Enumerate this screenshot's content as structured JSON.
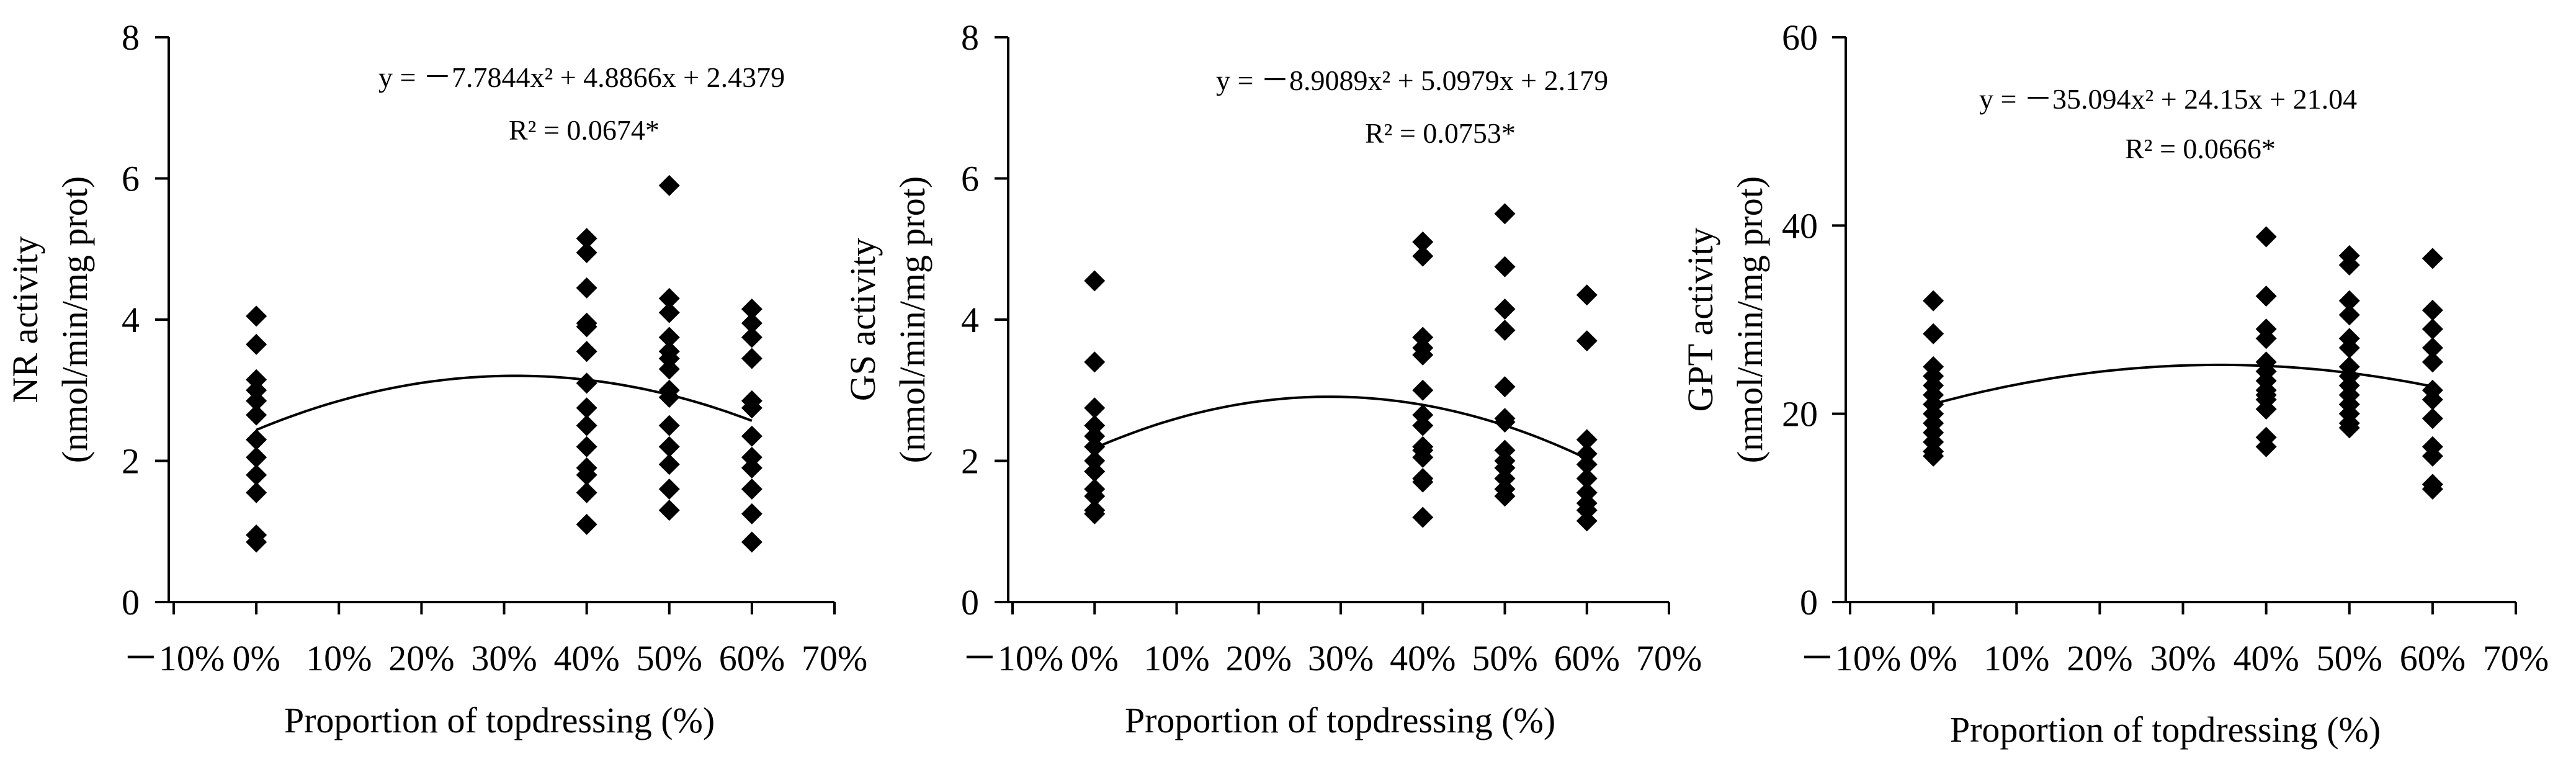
{
  "chart_data": [
    {
      "type": "scatter",
      "ylabel_line1": "NR activity",
      "ylabel_line2": "(nmol/min/mg prot)",
      "xlabel": "Proportion of topdressing (%)",
      "xlim": [
        -0.1,
        0.7
      ],
      "ylim": [
        0,
        8
      ],
      "x_tick_values": [
        -0.1,
        0.0,
        0.1,
        0.2,
        0.3,
        0.4,
        0.5,
        0.6,
        0.7
      ],
      "x_tick_labels": [
        "－10%",
        "0%",
        "10%",
        "20%",
        "30%",
        "40%",
        "50%",
        "60%",
        "70%"
      ],
      "y_tick_values": [
        0,
        2,
        4,
        6,
        8
      ],
      "y_tick_labels": [
        "0",
        "2",
        "4",
        "6",
        "8"
      ],
      "equation": "y =  －7.7844x² + 4.8866x + 2.4379",
      "r2": "R² = 0.0674*",
      "fit": {
        "a": -7.7844,
        "b": 4.8866,
        "c": 2.4379,
        "x_range": [
          0.0,
          0.6
        ]
      },
      "points": [
        {
          "x": 0.0,
          "y": [
            4.05,
            3.65,
            3.15,
            3.0,
            2.85,
            2.65,
            2.3,
            2.05,
            1.8,
            1.55,
            0.95,
            0.85
          ]
        },
        {
          "x": 0.4,
          "y": [
            5.15,
            4.95,
            4.45,
            3.95,
            3.9,
            3.55,
            3.1,
            2.75,
            2.5,
            2.2,
            1.9,
            1.8,
            1.55,
            1.1
          ]
        },
        {
          "x": 0.5,
          "y": [
            5.9,
            4.3,
            4.1,
            3.75,
            3.55,
            3.45,
            3.3,
            3.0,
            2.9,
            2.5,
            2.2,
            1.95,
            1.6,
            1.3
          ]
        },
        {
          "x": 0.6,
          "y": [
            4.15,
            3.95,
            3.75,
            3.45,
            2.85,
            2.75,
            2.35,
            2.05,
            1.9,
            1.6,
            1.25,
            0.85
          ]
        }
      ]
    },
    {
      "type": "scatter",
      "ylabel_line1": "GS activity",
      "ylabel_line2": "(nmol/min/mg prot)",
      "xlabel": "Proportion of topdressing (%)",
      "xlim": [
        -0.1,
        0.7
      ],
      "ylim": [
        0,
        8
      ],
      "x_tick_values": [
        -0.1,
        0.0,
        0.1,
        0.2,
        0.3,
        0.4,
        0.5,
        0.6,
        0.7
      ],
      "x_tick_labels": [
        "－10%",
        "0%",
        "10%",
        "20%",
        "30%",
        "40%",
        "50%",
        "60%",
        "70%"
      ],
      "y_tick_values": [
        0,
        2,
        4,
        6,
        8
      ],
      "y_tick_labels": [
        "0",
        "2",
        "4",
        "6",
        "8"
      ],
      "equation": "y =  －8.9089x² + 5.0979x + 2.179",
      "r2": "R² = 0.0753*",
      "fit": {
        "a": -8.9089,
        "b": 5.0979,
        "c": 2.179,
        "x_range": [
          0.0,
          0.6
        ]
      },
      "points": [
        {
          "x": 0.0,
          "y": [
            4.55,
            3.4,
            2.75,
            2.5,
            2.35,
            2.2,
            2.0,
            1.85,
            1.6,
            1.5,
            1.3,
            1.25
          ]
        },
        {
          "x": 0.4,
          "y": [
            5.1,
            4.9,
            3.75,
            3.6,
            3.5,
            3.0,
            2.65,
            2.5,
            2.2,
            2.15,
            2.05,
            1.75,
            1.7,
            1.2
          ]
        },
        {
          "x": 0.5,
          "y": [
            5.5,
            4.75,
            4.15,
            3.85,
            3.05,
            2.6,
            2.55,
            2.15,
            2.0,
            1.9,
            1.75,
            1.6,
            1.5
          ]
        },
        {
          "x": 0.6,
          "y": [
            4.35,
            3.7,
            2.3,
            2.1,
            1.95,
            1.75,
            1.55,
            1.4,
            1.3,
            1.15
          ]
        }
      ]
    },
    {
      "type": "scatter",
      "ylabel_line1": "GPT activity",
      "ylabel_line2": "(nmol/min/mg prot)",
      "xlabel": "Proportion of topdressing (%)",
      "xlim": [
        -0.1,
        0.7
      ],
      "ylim": [
        0,
        60
      ],
      "x_tick_values": [
        -0.1,
        0.0,
        0.1,
        0.2,
        0.3,
        0.4,
        0.5,
        0.6,
        0.7
      ],
      "x_tick_labels": [
        "－10%",
        "0%",
        "10%",
        "20%",
        "30%",
        "40%",
        "50%",
        "60%",
        "70%"
      ],
      "y_tick_values": [
        0,
        20,
        40,
        60
      ],
      "y_tick_labels": [
        "0",
        "20",
        "40",
        "60"
      ],
      "equation": "y = －35.094x² + 24.15x + 21.04",
      "r2": "R² = 0.0666*",
      "fit": {
        "a": -35.094,
        "b": 24.15,
        "c": 21.04,
        "x_range": [
          0.0,
          0.6
        ]
      },
      "points": [
        {
          "x": 0.0,
          "y": [
            32.0,
            28.5,
            25.0,
            24.0,
            23.0,
            22.0,
            21.0,
            20.0,
            19.0,
            18.0,
            17.0,
            16.0,
            15.5
          ]
        },
        {
          "x": 0.4,
          "y": [
            38.8,
            32.5,
            29.0,
            28.0,
            25.5,
            24.5,
            23.5,
            22.5,
            22.0,
            21.5,
            20.5,
            17.5,
            16.5
          ]
        },
        {
          "x": 0.5,
          "y": [
            36.8,
            35.8,
            32.0,
            30.5,
            28.0,
            27.0,
            25.0,
            24.0,
            23.0,
            22.0,
            21.0,
            20.0,
            19.0,
            18.5
          ]
        },
        {
          "x": 0.6,
          "y": [
            36.5,
            31.0,
            29.0,
            27.0,
            25.5,
            22.5,
            21.5,
            19.5,
            16.5,
            15.5,
            12.5,
            12.0
          ]
        }
      ]
    }
  ]
}
